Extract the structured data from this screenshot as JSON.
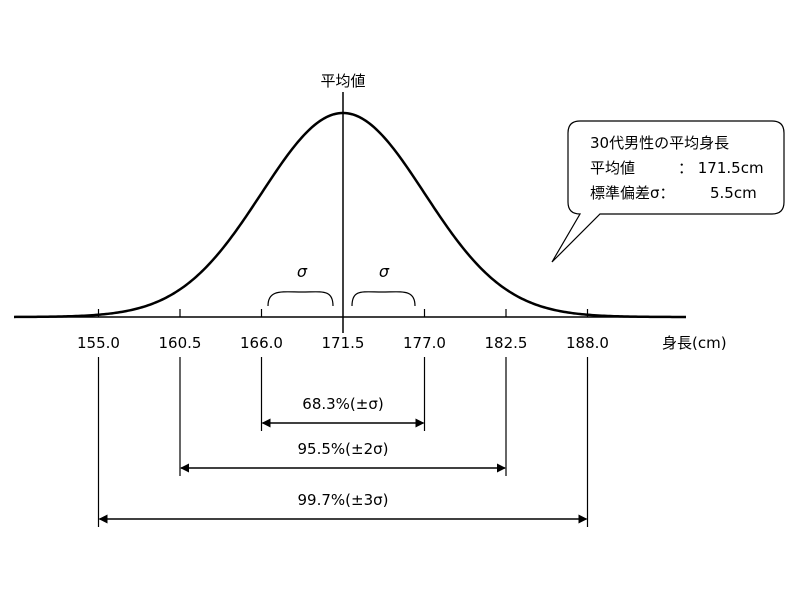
{
  "diagram": {
    "mean_label": "平均値",
    "x_axis_label": "身長(cm)",
    "sigma_symbol": "σ",
    "ticks": [
      "155.0",
      "160.5",
      "166.0",
      "171.5",
      "177.0",
      "182.5",
      "188.0"
    ],
    "ranges": [
      {
        "label": "68.3%(±σ)",
        "k": 1
      },
      {
        "label": "95.5%(±2σ)",
        "k": 2
      },
      {
        "label": "99.7%(±3σ)",
        "k": 3
      }
    ],
    "callout": {
      "title": "30代男性の平均身長",
      "mean_label": "平均値",
      "mean_value": "：  171.5cm",
      "sd_label": "標準偏差σ：",
      "sd_value": "5.5cm"
    }
  },
  "chart_data": {
    "type": "line",
    "mean": 171.5,
    "sd": 5.5,
    "x": [
      155.0,
      160.5,
      166.0,
      171.5,
      177.0,
      182.5,
      188.0
    ],
    "xlabel": "身長(cm)",
    "annotations": [
      "68.3%(±σ)",
      "95.5%(±2σ)",
      "99.7%(±3σ)"
    ]
  }
}
